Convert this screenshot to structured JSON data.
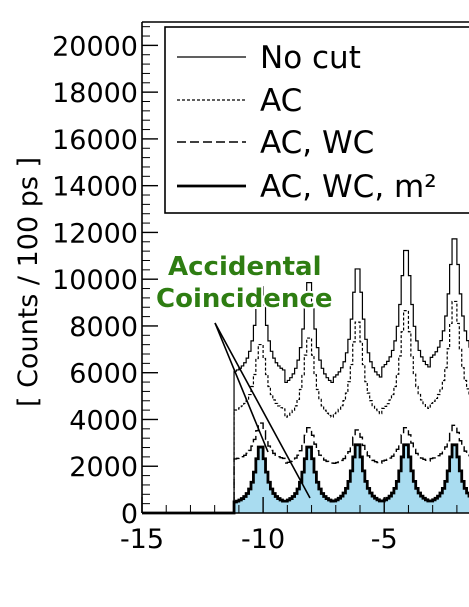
{
  "chart_data": {
    "type": "line",
    "title": "",
    "xlabel": "",
    "ylabel": "[ Counts / 100 ps ]",
    "xlim": [
      -15,
      -1.5
    ],
    "ylim": [
      0,
      21000
    ],
    "x_ticks": [
      -15,
      -10,
      -5
    ],
    "y_ticks": [
      0,
      2000,
      4000,
      6000,
      8000,
      10000,
      12000,
      14000,
      16000,
      18000,
      20000
    ],
    "grid": false,
    "legend_position": "top-right",
    "legend": [
      {
        "label": "No cut",
        "style": "solid-thin"
      },
      {
        "label": "AC",
        "style": "dotted"
      },
      {
        "label": "AC, WC",
        "style": "dashed"
      },
      {
        "label": "AC, WC, m²",
        "style": "solid-thick"
      }
    ],
    "annotation": {
      "lines": [
        "Accidental",
        "Coincidence"
      ],
      "color": "#2e7d12"
    },
    "series": [
      {
        "name": "No cut",
        "onset_x": -11.2,
        "peak_x": [
          -10.1,
          -8.1,
          -6.1,
          -4.1,
          -2.1
        ],
        "peak_y": [
          9800,
          10000,
          10600,
          11400,
          11900
        ],
        "trough_y": [
          5800,
          5200,
          5400,
          5800,
          6200
        ]
      },
      {
        "name": "AC",
        "onset_x": -11.2,
        "peak_x": [
          -10.1,
          -8.1,
          -6.1,
          -4.1,
          -2.1
        ],
        "peak_y": [
          7300,
          7600,
          8300,
          8800,
          9200
        ],
        "trough_y": [
          4200,
          3800,
          3900,
          4100,
          4300
        ]
      },
      {
        "name": "AC, WC",
        "onset_x": -11.2,
        "peak_x": [
          -10.1,
          -8.1,
          -6.1,
          -4.1,
          -2.1
        ],
        "peak_y": [
          3900,
          3700,
          3600,
          3700,
          3800
        ],
        "trough_y": [
          2200,
          2000,
          2000,
          2100,
          2200
        ]
      },
      {
        "name": "AC, WC, m²",
        "onset_x": -11.2,
        "peak_x": [
          -10.1,
          -8.1,
          -6.1,
          -4.1,
          -2.1
        ],
        "peak_y": [
          2900,
          2900,
          3000,
          3000,
          3000
        ],
        "trough_y": [
          300,
          300,
          300,
          300,
          300
        ],
        "fill": "#a9dcf0"
      }
    ]
  }
}
